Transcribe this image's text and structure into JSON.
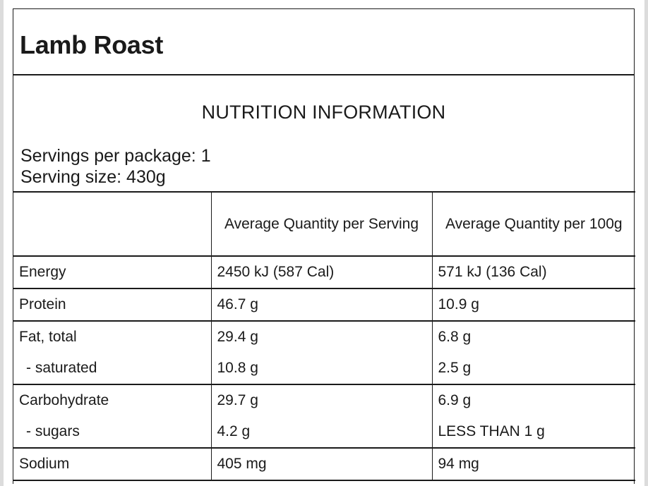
{
  "product": {
    "title": "Lamb Roast"
  },
  "panel": {
    "heading": "NUTRITION INFORMATION",
    "servings_per_package": "Servings per package: 1",
    "serving_size": "Serving size: 430g"
  },
  "table": {
    "headers": [
      "",
      "Average Quantity per Serving",
      "Average Quantity per 100g"
    ],
    "rows": [
      {
        "name": "Energy",
        "per_serving": "2450 kJ (587 Cal)",
        "per_100g": "571 kJ (136 Cal)"
      },
      {
        "name": "Protein",
        "per_serving": "46.7 g",
        "per_100g": "10.9 g"
      },
      {
        "name": "Fat, total",
        "per_serving": "29.4 g",
        "per_100g": "6.8 g"
      },
      {
        "name": "- saturated",
        "per_serving": "10.8 g",
        "per_100g": "2.5 g"
      },
      {
        "name": "Carbohydrate",
        "per_serving": "29.7 g",
        "per_100g": "6.9 g"
      },
      {
        "name": "- sugars",
        "per_serving": "4.2 g",
        "per_100g": "LESS THAN 1 g"
      },
      {
        "name": "Sodium",
        "per_serving": "405 mg",
        "per_100g": "94 mg"
      }
    ]
  }
}
